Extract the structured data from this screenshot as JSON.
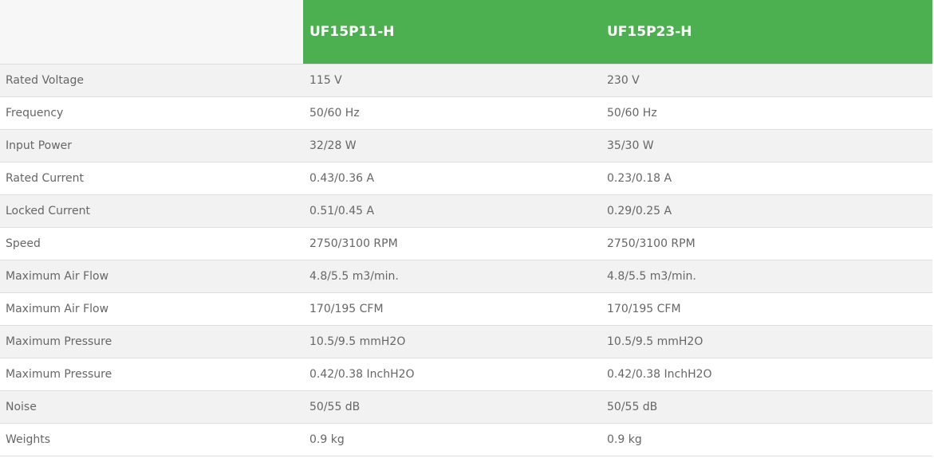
{
  "header": {
    "models": [
      "UF15P11-H",
      "UF15P23-H"
    ]
  },
  "colors": {
    "header_green": "#4cb050",
    "text": "#666666",
    "stripe": "#f2f2f2"
  },
  "rows": [
    {
      "label": "Rated Voltage",
      "values": [
        "115 V",
        "230 V"
      ]
    },
    {
      "label": "Frequency",
      "values": [
        "50/60 Hz",
        "50/60 Hz"
      ]
    },
    {
      "label": "Input Power",
      "values": [
        "32/28 W",
        "35/30 W"
      ]
    },
    {
      "label": "Rated Current",
      "values": [
        "0.43/0.36 A",
        "0.23/0.18 A"
      ]
    },
    {
      "label": "Locked Current",
      "values": [
        "0.51/0.45 A",
        "0.29/0.25 A"
      ]
    },
    {
      "label": "Speed",
      "values": [
        "2750/3100 RPM",
        "2750/3100 RPM"
      ]
    },
    {
      "label": "Maximum Air Flow",
      "values": [
        "4.8/5.5 m3/min.",
        "4.8/5.5 m3/min."
      ]
    },
    {
      "label": "Maximum Air Flow",
      "values": [
        "170/195 CFM",
        "170/195 CFM"
      ]
    },
    {
      "label": "Maximum Pressure",
      "values": [
        "10.5/9.5 mmH2O",
        "10.5/9.5 mmH2O"
      ]
    },
    {
      "label": "Maximum Pressure",
      "values": [
        "0.42/0.38 InchH2O",
        "0.42/0.38 InchH2O"
      ]
    },
    {
      "label": "Noise",
      "values": [
        "50/55 dB",
        "50/55 dB"
      ]
    },
    {
      "label": "Weights",
      "values": [
        "0.9 kg",
        "0.9 kg"
      ]
    }
  ]
}
